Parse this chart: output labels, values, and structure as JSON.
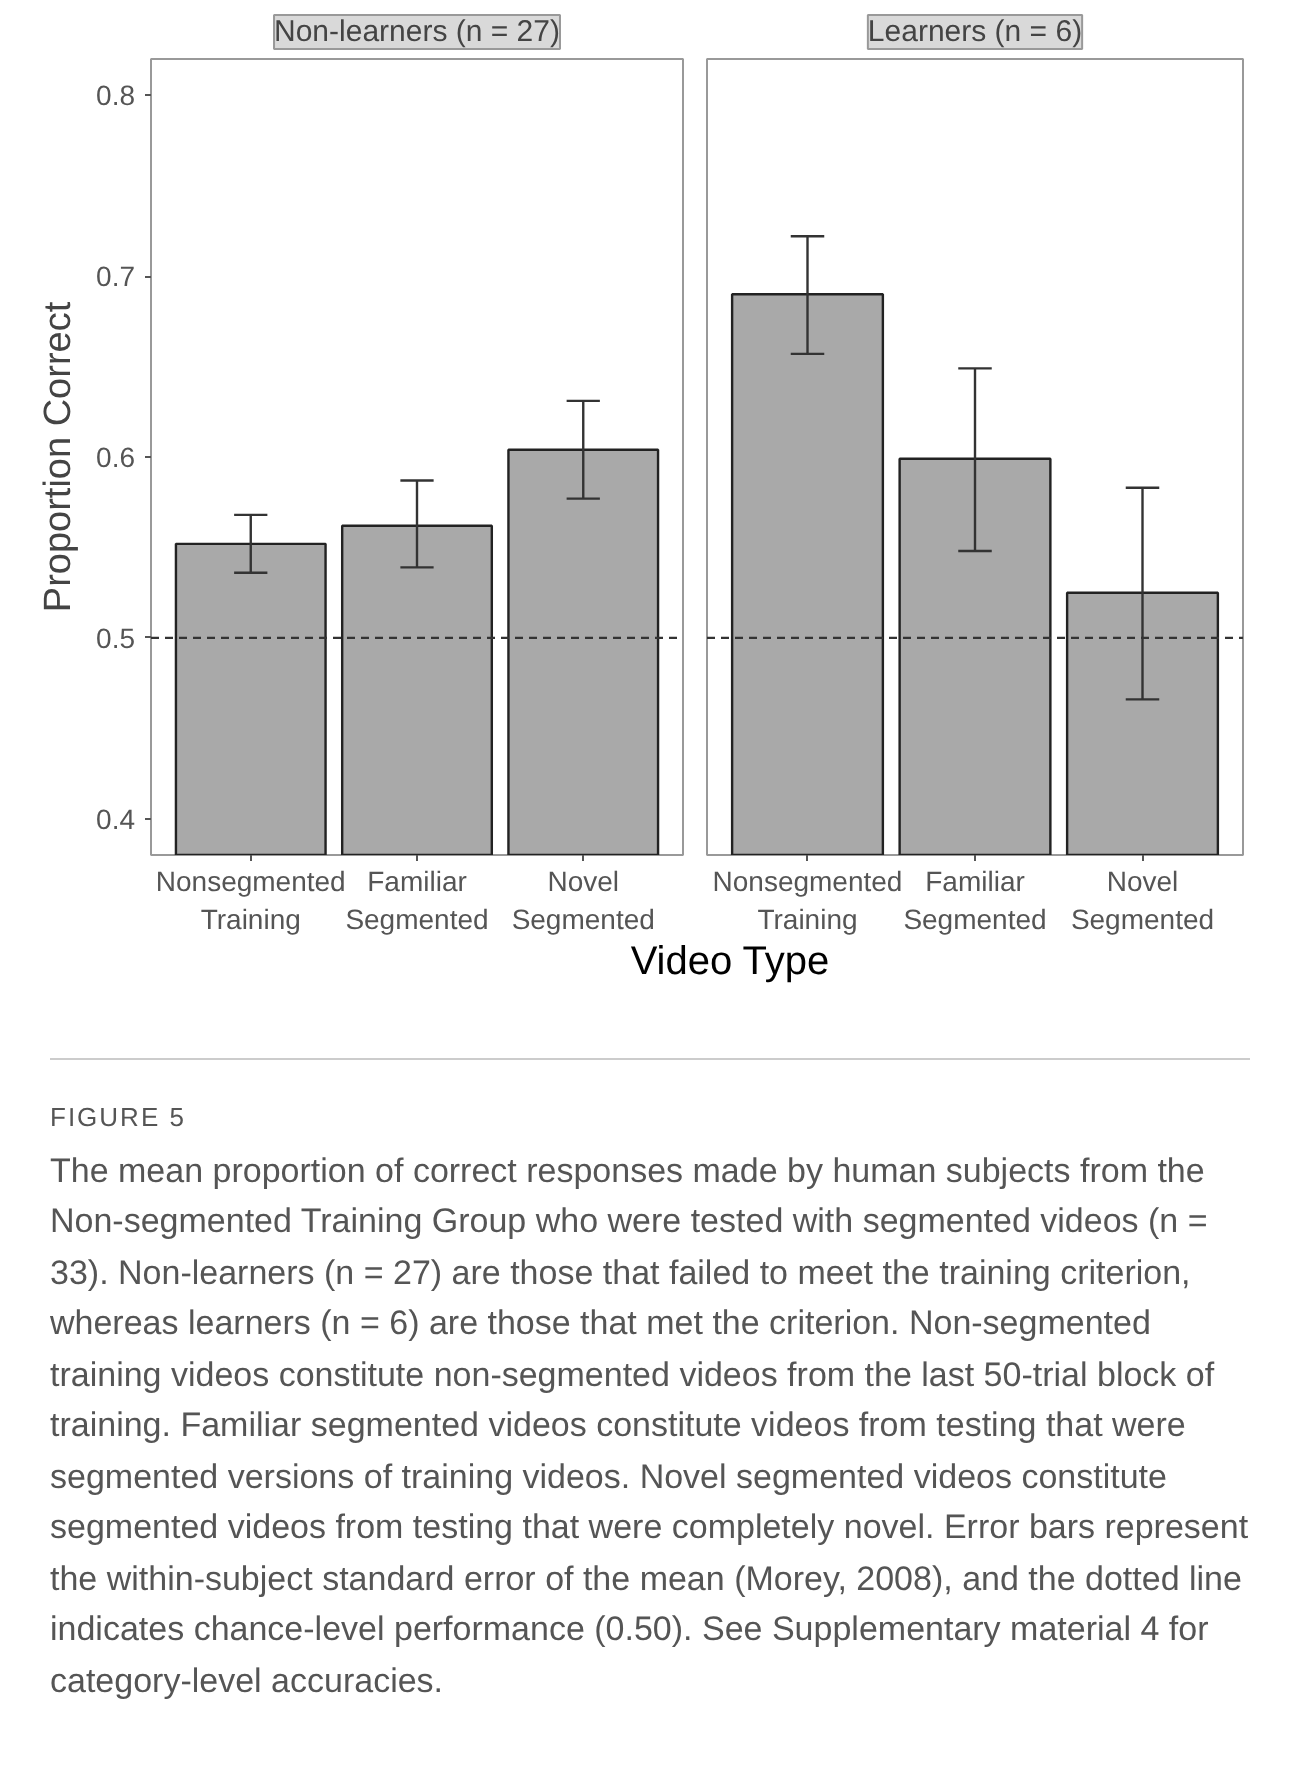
{
  "chart_data": [
    {
      "type": "bar",
      "title": "Non-learners (n = 27)",
      "ylabel": "Proportion Correct",
      "xlabel": "Video Type",
      "categories": [
        "Nonsegmented\nTraining",
        "Familiar\nSegmented",
        "Novel\nSegmented"
      ],
      "values": [
        0.552,
        0.562,
        0.604
      ],
      "color": "#a9a9a9",
      "errors": [
        [
          0.536,
          0.568
        ],
        [
          0.539,
          0.587
        ],
        [
          0.577,
          0.631
        ]
      ],
      "ylim": [
        0.38,
        0.82
      ],
      "yticks": [
        0.4,
        0.5,
        0.6,
        0.7,
        0.8
      ],
      "grid": false,
      "ref_lines": [
        {
          "axis": "y",
          "value": 0.5,
          "label": null,
          "line_style": "dashed",
          "color": "#333333"
        }
      ],
      "annotations": [
        "FIGURE 5",
        "The mean proportion of correct responses made by human subjects from the Non-segmented Training Group who were tested with segmented videos (n = 33). Non-learners (n = 27) are those that failed to meet the training criterion, whereas learners (n = 6) are those that met the criterion. Non-segmented training videos constitute non-segmented videos from the last 50-trial block of training. Familiar segmented videos constitute videos from testing that were segmented versions of training videos. Novel segmented videos constitute segmented videos from testing that were completely novel. Error bars represent the within-subject standard error of the mean (Morey, 2008), and the dotted line indicates chance-level performance (0.50). See Supplementary material 4 for category-level accuracies."
      ]
    },
    {
      "type": "bar",
      "title": "Learners (n = 6)",
      "categories": [
        "Nonsegmented\nTraining",
        "Familiar\nSegmented",
        "Novel\nSegmented"
      ],
      "values": [
        0.69,
        0.599,
        0.525
      ],
      "color": "#a9a9a9",
      "errors": [
        [
          0.657,
          0.722
        ],
        [
          0.548,
          0.649
        ],
        [
          0.466,
          0.583
        ]
      ],
      "ylim": [
        0.38,
        0.82
      ],
      "yticks": [
        0.4,
        0.5,
        0.6,
        0.7,
        0.8
      ],
      "grid": false,
      "tick_labels": "x",
      "ref_lines": [
        {
          "axis": "y",
          "value": 0.5,
          "label": null,
          "line_style": "dashed",
          "color": "#333333"
        }
      ]
    }
  ]
}
